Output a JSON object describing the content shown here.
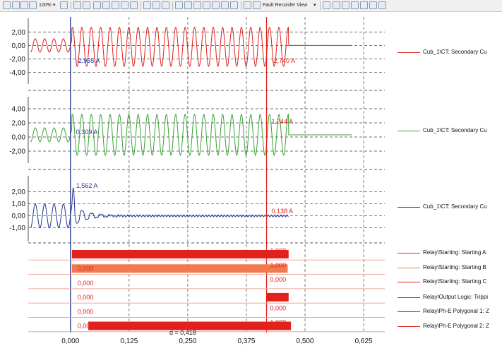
{
  "toolbar": {
    "zoom_label": "100%",
    "view_label": "Fault Recorder View"
  },
  "colors": {
    "red": "#e2211c",
    "green": "#3aa335",
    "blue": "#24378f",
    "grid": "#444444"
  },
  "chart_data": {
    "type": "line",
    "x_axis": {
      "ticks": [
        "0,000",
        "0,125",
        "0,250",
        "0,375",
        "0,500",
        "0,625"
      ],
      "tick_values": [
        0.0,
        0.125,
        0.25,
        0.375,
        0.5,
        0.625
      ],
      "range": [
        -0.09,
        0.67
      ]
    },
    "cursors": [
      {
        "x": 0.0,
        "color": "#24378f"
      },
      {
        "x": 0.418,
        "color": "#e2211c"
      }
    ],
    "distance_label": "d = 0,418",
    "panels": [
      {
        "name": "Cub_1\\CT: Secondary Cu",
        "color": "#e2211c",
        "ylim": [
          -5.3,
          3.6
        ],
        "yticks": [
          "2,00",
          "0,00",
          "-2,00",
          "-4,00"
        ],
        "ytick_values": [
          2,
          0,
          -2,
          -4
        ],
        "cursor_labels": [
          "-2,955 A",
          "-2,740 A"
        ],
        "waveform": {
          "pre_amp": 1.0,
          "pre_offset": 0.0,
          "fault_amp": 2.9,
          "fault_offset": -0.2,
          "fault_start": 0.003,
          "fault_end": 0.465,
          "post_value": 0.0,
          "post_end": 0.6
        }
      },
      {
        "name": "Cub_1\\CT: Secondary Cu",
        "color": "#3aa335",
        "ylim": [
          -3.3,
          5.3
        ],
        "yticks": [
          "4,00",
          "2,00",
          "0,00",
          "-2,00"
        ],
        "ytick_values": [
          4,
          2,
          0,
          -2
        ],
        "cursor_labels": [
          "0,309 A",
          "1,244 A"
        ],
        "waveform": {
          "pre_amp": 1.0,
          "pre_offset": 0.3,
          "fault_amp": 2.9,
          "fault_offset": 0.3,
          "fault_start": 0.003,
          "fault_end": 0.465,
          "post_value": 0.3,
          "post_end": 0.6
        }
      },
      {
        "name": "Cub_1\\CT: Secondary Cu",
        "color": "#24378f",
        "ylim": [
          -1.9,
          3.1
        ],
        "yticks": [
          "2,00",
          "1,00",
          "0,00",
          "-1,00"
        ],
        "ytick_values": [
          2,
          1,
          0,
          -1
        ],
        "cursor_labels": [
          "1,562 A",
          "0,138 A"
        ],
        "waveform": {
          "pre_amp": 1.0,
          "pre_offset": 0.0,
          "fault_amp": 0.08,
          "fault_offset": 0.0,
          "fault_start": 0.003,
          "fault_end": 0.465,
          "post_value": 0.0,
          "post_end": 0.465
        }
      }
    ],
    "digital": [
      {
        "name": "Relay\\Starting: Starting A",
        "color": "#e2211c",
        "on_from": 0.003,
        "on_to": 0.465,
        "label_left": "0,000",
        "label_right": "1,000"
      },
      {
        "name": "Relay\\Starting: Starting B",
        "color": "#f07b4f",
        "on_from": 0.003,
        "on_to": 0.463,
        "label_left": "0,000",
        "label_right": "1,000"
      },
      {
        "name": "Relay\\Starting: Starting C",
        "color": "#e2211c",
        "on_from": null,
        "on_to": null,
        "label_left": "0,000",
        "label_right": "0,000"
      },
      {
        "name": "Relay\\Output Logic: Trippi",
        "color": "#e2211c",
        "on_from": 0.418,
        "on_to": 0.465,
        "label_left": "0,000",
        "label_right": ""
      },
      {
        "name": "Relay\\Ph-E Polygonal 1: Z",
        "color": "#b0191c",
        "on_from": null,
        "on_to": null,
        "label_left": "0,000",
        "label_right": "0,000"
      },
      {
        "name": "Relay\\Ph-E Polygonal 2: Z",
        "color": "#e2211c",
        "on_from": 0.038,
        "on_to": 0.47,
        "label_left": "0,000",
        "label_right": "1,000"
      }
    ]
  }
}
